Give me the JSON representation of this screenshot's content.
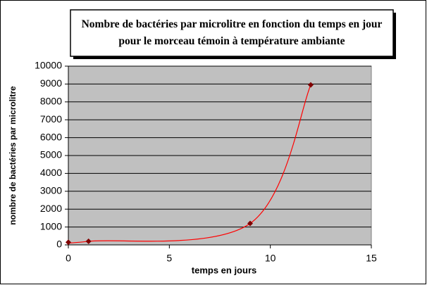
{
  "chart_data": {
    "type": "scatter",
    "title": "Nombre de bactéries par microlitre en fonction du temps en jour pour le morceau témoin à température ambiante",
    "x_label": "temps en jours",
    "y_label": "nombre de bactéries par microlitre",
    "x": [
      0,
      1,
      9,
      12
    ],
    "values": [
      150,
      200,
      1200,
      8950
    ],
    "color": "#ff0000",
    "marker_color": "#800000",
    "smooth": true,
    "xlim": [
      0,
      15
    ],
    "xticks": [
      0,
      5,
      10,
      15
    ],
    "ylim": [
      0,
      10000
    ],
    "yticks": [
      0,
      1000,
      2000,
      3000,
      4000,
      5000,
      6000,
      7000,
      8000,
      9000,
      10000
    ],
    "grid": true
  }
}
